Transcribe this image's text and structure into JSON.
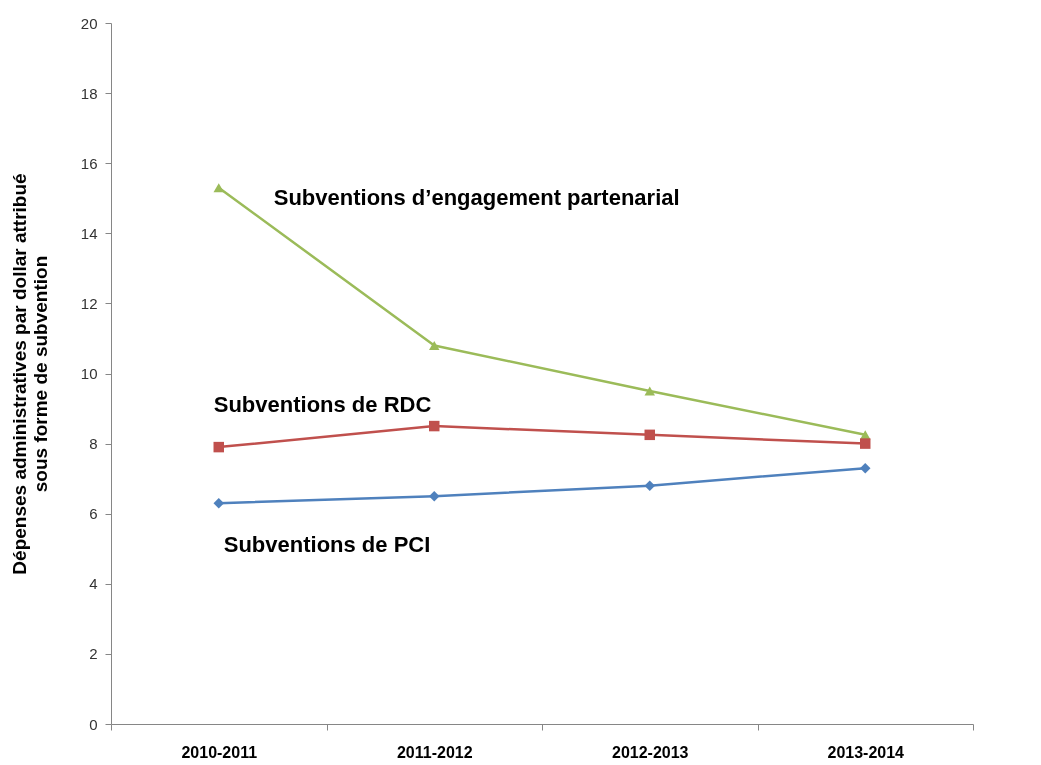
{
  "chart_data": {
    "type": "line",
    "ylabel": "Dépenses administratives par dollar attribué\nsous forme de subvention",
    "categories": [
      "2010-2011",
      "2011-2012",
      "2012-2013",
      "2013-2014"
    ],
    "series": [
      {
        "name": "Subventions d’engagement partenarial",
        "color": "#9bbb59",
        "marker": "triangle",
        "values": [
          15.3,
          10.8,
          9.5,
          8.25
        ]
      },
      {
        "name": "Subventions de RDC",
        "color": "#c0504d",
        "marker": "square",
        "values": [
          7.9,
          8.5,
          8.25,
          8.0
        ]
      },
      {
        "name": "Subventions de PCI",
        "color": "#4f81bd",
        "marker": "diamond",
        "values": [
          6.3,
          6.5,
          6.8,
          7.3
        ]
      }
    ],
    "ylim": [
      0,
      20
    ],
    "yticks": [
      0,
      2,
      4,
      6,
      8,
      10,
      12,
      14,
      16,
      18,
      20
    ],
    "grid": false,
    "legend": false,
    "line_style": "solid"
  }
}
